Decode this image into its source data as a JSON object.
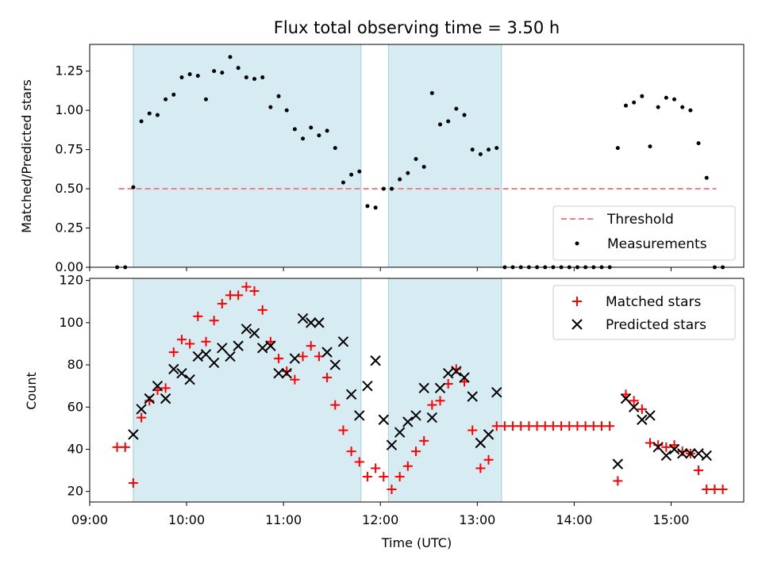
{
  "chart_data": [
    {
      "type": "scatter",
      "title": "Flux total observing time = 3.50 h",
      "ylabel": "Matched/Predicted stars",
      "xlim": [
        "09:00",
        "15:45"
      ],
      "ylim": [
        0,
        1.42
      ],
      "yticks": [
        "0.00",
        "0.25",
        "0.50",
        "0.75",
        "1.00",
        "1.25"
      ],
      "observing_windows": [
        [
          "09:27",
          "11:48"
        ],
        [
          "12:05",
          "13:15"
        ]
      ],
      "threshold": {
        "name": "Threshold",
        "value": 0.5,
        "x_range": [
          "09:18",
          "15:28"
        ],
        "color": "#f08080"
      },
      "legend": {
        "position": "lower-right",
        "entries": [
          "Threshold",
          "Measurements"
        ]
      },
      "series": [
        {
          "name": "Measurements",
          "color": "#000000",
          "points": [
            [
              "09:17",
              0.0
            ],
            [
              "09:22",
              0.0
            ],
            [
              "09:27",
              0.51
            ],
            [
              "09:32",
              0.93
            ],
            [
              "09:37",
              0.98
            ],
            [
              "09:42",
              0.97
            ],
            [
              "09:47",
              1.07
            ],
            [
              "09:52",
              1.1
            ],
            [
              "09:57",
              1.21
            ],
            [
              "10:02",
              1.23
            ],
            [
              "10:07",
              1.22
            ],
            [
              "10:12",
              1.07
            ],
            [
              "10:17",
              1.25
            ],
            [
              "10:22",
              1.24
            ],
            [
              "10:27",
              1.34
            ],
            [
              "10:32",
              1.27
            ],
            [
              "10:37",
              1.21
            ],
            [
              "10:42",
              1.2
            ],
            [
              "10:47",
              1.21
            ],
            [
              "10:52",
              1.02
            ],
            [
              "10:57",
              1.09
            ],
            [
              "11:02",
              1.0
            ],
            [
              "11:07",
              0.88
            ],
            [
              "11:12",
              0.82
            ],
            [
              "11:17",
              0.89
            ],
            [
              "11:22",
              0.84
            ],
            [
              "11:27",
              0.87
            ],
            [
              "11:32",
              0.76
            ],
            [
              "11:37",
              0.54
            ],
            [
              "11:42",
              0.59
            ],
            [
              "11:47",
              0.61
            ],
            [
              "11:52",
              0.39
            ],
            [
              "11:57",
              0.38
            ],
            [
              "12:02",
              0.5
            ],
            [
              "12:07",
              0.5
            ],
            [
              "12:12",
              0.56
            ],
            [
              "12:17",
              0.6
            ],
            [
              "12:22",
              0.69
            ],
            [
              "12:27",
              0.64
            ],
            [
              "12:32",
              1.11
            ],
            [
              "12:37",
              0.91
            ],
            [
              "12:42",
              0.93
            ],
            [
              "12:47",
              1.01
            ],
            [
              "12:52",
              0.97
            ],
            [
              "12:57",
              0.75
            ],
            [
              "13:02",
              0.72
            ],
            [
              "13:07",
              0.75
            ],
            [
              "13:12",
              0.76
            ],
            [
              "13:17",
              0.0
            ],
            [
              "13:22",
              0.0
            ],
            [
              "13:27",
              0.0
            ],
            [
              "13:32",
              0.0
            ],
            [
              "13:37",
              0.0
            ],
            [
              "13:42",
              0.0
            ],
            [
              "13:47",
              0.0
            ],
            [
              "13:52",
              0.0
            ],
            [
              "13:57",
              0.0
            ],
            [
              "14:02",
              0.0
            ],
            [
              "14:07",
              0.0
            ],
            [
              "14:12",
              0.0
            ],
            [
              "14:17",
              0.0
            ],
            [
              "14:22",
              0.0
            ],
            [
              "14:27",
              0.76
            ],
            [
              "14:32",
              1.03
            ],
            [
              "14:37",
              1.05
            ],
            [
              "14:42",
              1.09
            ],
            [
              "14:47",
              0.77
            ],
            [
              "14:52",
              1.02
            ],
            [
              "14:57",
              1.08
            ],
            [
              "15:02",
              1.07
            ],
            [
              "15:07",
              1.02
            ],
            [
              "15:12",
              1.0
            ],
            [
              "15:17",
              0.79
            ],
            [
              "15:22",
              0.57
            ],
            [
              "15:27",
              0.0
            ],
            [
              "15:32",
              0.0
            ]
          ]
        }
      ]
    },
    {
      "type": "scatter",
      "ylabel": "Count",
      "xlabel": "Time (UTC)",
      "xlim": [
        "09:00",
        "15:45"
      ],
      "ylim": [
        15,
        121
      ],
      "xticks": [
        "09:00",
        "10:00",
        "11:00",
        "12:00",
        "13:00",
        "14:00",
        "15:00"
      ],
      "yticks": [
        20,
        40,
        60,
        80,
        100,
        120
      ],
      "observing_windows": [
        [
          "09:27",
          "11:48"
        ],
        [
          "12:05",
          "13:15"
        ]
      ],
      "legend": {
        "position": "upper-right",
        "entries": [
          "Matched stars",
          "Predicted stars"
        ]
      },
      "series": [
        {
          "name": "Matched stars",
          "marker": "plus",
          "color": "#ff0000",
          "points": [
            [
              "09:17",
              41
            ],
            [
              "09:22",
              41
            ],
            [
              "09:27",
              24
            ],
            [
              "09:32",
              55
            ],
            [
              "09:37",
              63
            ],
            [
              "09:42",
              68
            ],
            [
              "09:47",
              69
            ],
            [
              "09:52",
              86
            ],
            [
              "09:57",
              92
            ],
            [
              "10:02",
              90
            ],
            [
              "10:07",
              103
            ],
            [
              "10:12",
              91
            ],
            [
              "10:17",
              101
            ],
            [
              "10:22",
              109
            ],
            [
              "10:27",
              113
            ],
            [
              "10:32",
              113
            ],
            [
              "10:37",
              117
            ],
            [
              "10:42",
              115
            ],
            [
              "10:47",
              106
            ],
            [
              "10:52",
              91
            ],
            [
              "10:57",
              83
            ],
            [
              "11:02",
              77
            ],
            [
              "11:07",
              73
            ],
            [
              "11:12",
              84
            ],
            [
              "11:17",
              89
            ],
            [
              "11:22",
              84
            ],
            [
              "11:27",
              74
            ],
            [
              "11:32",
              61
            ],
            [
              "11:37",
              49
            ],
            [
              "11:42",
              39
            ],
            [
              "11:47",
              34
            ],
            [
              "11:52",
              27
            ],
            [
              "11:57",
              31
            ],
            [
              "12:02",
              27
            ],
            [
              "12:07",
              21
            ],
            [
              "12:12",
              27
            ],
            [
              "12:17",
              32
            ],
            [
              "12:22",
              39
            ],
            [
              "12:27",
              44
            ],
            [
              "12:32",
              61
            ],
            [
              "12:37",
              63
            ],
            [
              "12:42",
              71
            ],
            [
              "12:47",
              78
            ],
            [
              "12:52",
              72
            ],
            [
              "12:57",
              49
            ],
            [
              "13:02",
              31
            ],
            [
              "13:07",
              35
            ],
            [
              "13:12",
              51
            ],
            [
              "13:17",
              51
            ],
            [
              "13:22",
              51
            ],
            [
              "13:27",
              51
            ],
            [
              "13:32",
              51
            ],
            [
              "13:37",
              51
            ],
            [
              "13:42",
              51
            ],
            [
              "13:47",
              51
            ],
            [
              "13:52",
              51
            ],
            [
              "13:57",
              51
            ],
            [
              "14:02",
              51
            ],
            [
              "14:07",
              51
            ],
            [
              "14:12",
              51
            ],
            [
              "14:17",
              51
            ],
            [
              "14:22",
              51
            ],
            [
              "14:27",
              25
            ],
            [
              "14:32",
              66
            ],
            [
              "14:37",
              63
            ],
            [
              "14:42",
              59
            ],
            [
              "14:47",
              43
            ],
            [
              "14:52",
              42
            ],
            [
              "14:57",
              41
            ],
            [
              "15:02",
              42
            ],
            [
              "15:07",
              39
            ],
            [
              "15:12",
              38
            ],
            [
              "15:17",
              30
            ],
            [
              "15:22",
              21
            ],
            [
              "15:27",
              21
            ],
            [
              "15:32",
              21
            ]
          ]
        },
        {
          "name": "Predicted stars",
          "marker": "x",
          "color": "#000000",
          "points": [
            [
              "09:27",
              47
            ],
            [
              "09:32",
              59
            ],
            [
              "09:37",
              64
            ],
            [
              "09:42",
              70
            ],
            [
              "09:47",
              64
            ],
            [
              "09:52",
              78
            ],
            [
              "09:57",
              76
            ],
            [
              "10:02",
              73
            ],
            [
              "10:07",
              84
            ],
            [
              "10:12",
              85
            ],
            [
              "10:17",
              81
            ],
            [
              "10:22",
              88
            ],
            [
              "10:27",
              84
            ],
            [
              "10:32",
              89
            ],
            [
              "10:37",
              97
            ],
            [
              "10:42",
              95
            ],
            [
              "10:47",
              88
            ],
            [
              "10:52",
              89
            ],
            [
              "10:57",
              76
            ],
            [
              "11:02",
              76
            ],
            [
              "11:07",
              83
            ],
            [
              "11:12",
              102
            ],
            [
              "11:17",
              100
            ],
            [
              "11:22",
              100
            ],
            [
              "11:27",
              86
            ],
            [
              "11:32",
              80
            ],
            [
              "11:37",
              91
            ],
            [
              "11:42",
              66
            ],
            [
              "11:47",
              56
            ],
            [
              "11:52",
              70
            ],
            [
              "11:57",
              82
            ],
            [
              "12:02",
              54
            ],
            [
              "12:07",
              42
            ],
            [
              "12:12",
              48
            ],
            [
              "12:17",
              53
            ],
            [
              "12:22",
              56
            ],
            [
              "12:27",
              69
            ],
            [
              "12:32",
              55
            ],
            [
              "12:37",
              69
            ],
            [
              "12:42",
              76
            ],
            [
              "12:47",
              77
            ],
            [
              "12:52",
              74
            ],
            [
              "12:57",
              65
            ],
            [
              "13:02",
              43
            ],
            [
              "13:07",
              47
            ],
            [
              "13:12",
              67
            ],
            [
              "14:27",
              33
            ],
            [
              "14:32",
              64
            ],
            [
              "14:37",
              60
            ],
            [
              "14:42",
              54
            ],
            [
              "14:47",
              56
            ],
            [
              "14:52",
              41
            ],
            [
              "14:57",
              37
            ],
            [
              "15:02",
              40
            ],
            [
              "15:07",
              38
            ],
            [
              "15:12",
              38
            ],
            [
              "15:17",
              38
            ],
            [
              "15:22",
              37
            ]
          ]
        }
      ]
    }
  ]
}
